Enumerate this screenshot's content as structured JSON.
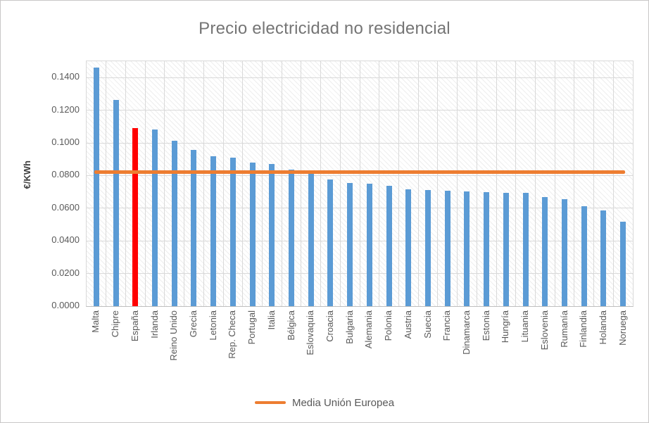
{
  "chart_data": {
    "type": "bar",
    "title": "Precio electricidad no residencial",
    "ylabel": "€/KWh",
    "xlabel": "",
    "ylim": [
      0,
      0.15
    ],
    "ytick_step": 0.02,
    "ytick_labels": [
      "0.0000",
      "0.0200",
      "0.0400",
      "0.0600",
      "0.0800",
      "0.1000",
      "0.1200",
      "0.1400"
    ],
    "grid": "horizontal and vertical, light gray, hatched plot background",
    "legend_position": "bottom-center",
    "categories": [
      "Malta",
      "Chipre",
      "España",
      "Irlanda",
      "Reino Unido",
      "Grecia",
      "Letonia",
      "Rep. Checa",
      "Portugal",
      "Italia",
      "Bélgica",
      "Eslovaquia",
      "Croacia",
      "Bulgaria",
      "Alemania",
      "Polonia",
      "Austria",
      "Suecia",
      "Francia",
      "Dinamarca",
      "Estonia",
      "Hungría",
      "Lituania",
      "Eslovenia",
      "Rumanía",
      "Finlandia",
      "Holanda",
      "Noruega"
    ],
    "series": [
      {
        "name": "Precio electricidad no residencial",
        "type": "bar",
        "values": [
          0.146,
          0.1265,
          0.109,
          0.108,
          0.1015,
          0.0955,
          0.092,
          0.091,
          0.088,
          0.087,
          0.0835,
          0.0828,
          0.0775,
          0.0756,
          0.075,
          0.0735,
          0.0716,
          0.0712,
          0.0706,
          0.0701,
          0.0698,
          0.0695,
          0.0692,
          0.0668,
          0.0655,
          0.061,
          0.0587,
          0.0517
        ],
        "color": "#5B9BD5",
        "highlight": {
          "category": "España",
          "index": 2,
          "color": "#FF0000"
        }
      },
      {
        "name": "Media Unión Europea",
        "type": "line",
        "value": 0.082,
        "color": "#ED7D31"
      }
    ],
    "legend": [
      {
        "label": "Media Unión Europea",
        "swatch": "line",
        "color": "#ED7D31"
      }
    ]
  },
  "colors": {
    "bar_blue": "#5B9BD5",
    "bar_highlight_red": "#FF0000",
    "avg_line_orange": "#ED7D31",
    "gridline": "#D9D9D9",
    "axis_line": "#BFBFBF",
    "tick_text": "#595959",
    "title_text": "#757575",
    "frame_border": "#C9C7C7"
  }
}
